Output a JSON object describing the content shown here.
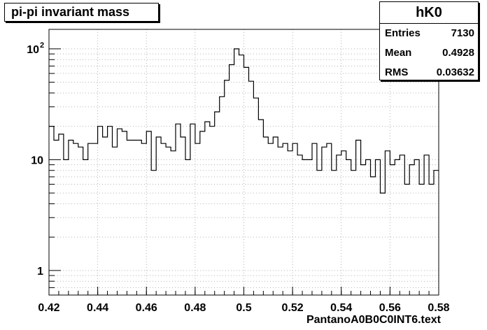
{
  "title": "pi-pi invariant mass",
  "stats": {
    "name": "hK0",
    "rows": [
      {
        "label": "Entries",
        "value": "7130"
      },
      {
        "label": "Mean",
        "value": "0.4928"
      },
      {
        "label": "RMS",
        "value": "0.03632"
      }
    ]
  },
  "chart_data": {
    "type": "histogram",
    "title": "pi-pi invariant mass",
    "xlabel": "PantanoA0B0C0INT6.text",
    "ylabel": "",
    "x_range": [
      0.42,
      0.58
    ],
    "y_range": [
      0.6,
      150
    ],
    "y_scale": "log",
    "bin_width": 0.002,
    "grid": true,
    "x_ticks": [
      0.42,
      0.44,
      0.46,
      0.48,
      0.5,
      0.52,
      0.54,
      0.56,
      0.58
    ],
    "x_tick_labels": [
      "0.42",
      "0.44",
      "0.46",
      "0.48",
      "0.5",
      "0.52",
      "0.54",
      "0.56",
      "0.58"
    ],
    "y_ticks": [
      1,
      10,
      100
    ],
    "y_tick_labels": [
      "1",
      "10",
      "10^2"
    ],
    "bin_centers": [
      0.421,
      0.423,
      0.425,
      0.427,
      0.429,
      0.431,
      0.433,
      0.435,
      0.437,
      0.439,
      0.441,
      0.443,
      0.445,
      0.447,
      0.449,
      0.451,
      0.453,
      0.455,
      0.457,
      0.459,
      0.461,
      0.463,
      0.465,
      0.467,
      0.469,
      0.471,
      0.473,
      0.475,
      0.477,
      0.479,
      0.481,
      0.483,
      0.485,
      0.487,
      0.489,
      0.491,
      0.493,
      0.495,
      0.497,
      0.499,
      0.501,
      0.503,
      0.505,
      0.507,
      0.509,
      0.511,
      0.513,
      0.515,
      0.517,
      0.519,
      0.521,
      0.523,
      0.525,
      0.527,
      0.529,
      0.531,
      0.533,
      0.535,
      0.537,
      0.539,
      0.541,
      0.543,
      0.545,
      0.547,
      0.549,
      0.551,
      0.553,
      0.555,
      0.557,
      0.559,
      0.561,
      0.563,
      0.565,
      0.567,
      0.569,
      0.571,
      0.573,
      0.575,
      0.577,
      0.579
    ],
    "values": [
      20,
      15,
      17,
      10,
      15,
      14,
      13,
      10,
      14,
      14,
      20,
      16,
      20,
      13,
      19,
      18,
      15,
      15,
      15,
      14,
      18,
      8,
      16,
      14,
      13,
      12,
      21,
      16,
      10,
      21,
      14,
      18,
      22,
      20,
      27,
      37,
      52,
      72,
      100,
      88,
      68,
      51,
      36,
      23,
      16,
      14,
      16,
      13,
      14,
      12,
      14,
      11,
      10,
      10,
      14,
      8,
      13,
      14,
      8,
      11,
      12,
      10,
      8,
      15,
      9,
      10,
      7,
      10,
      5,
      12,
      9,
      10,
      11,
      6,
      9,
      10,
      6,
      11,
      6,
      8
    ]
  }
}
